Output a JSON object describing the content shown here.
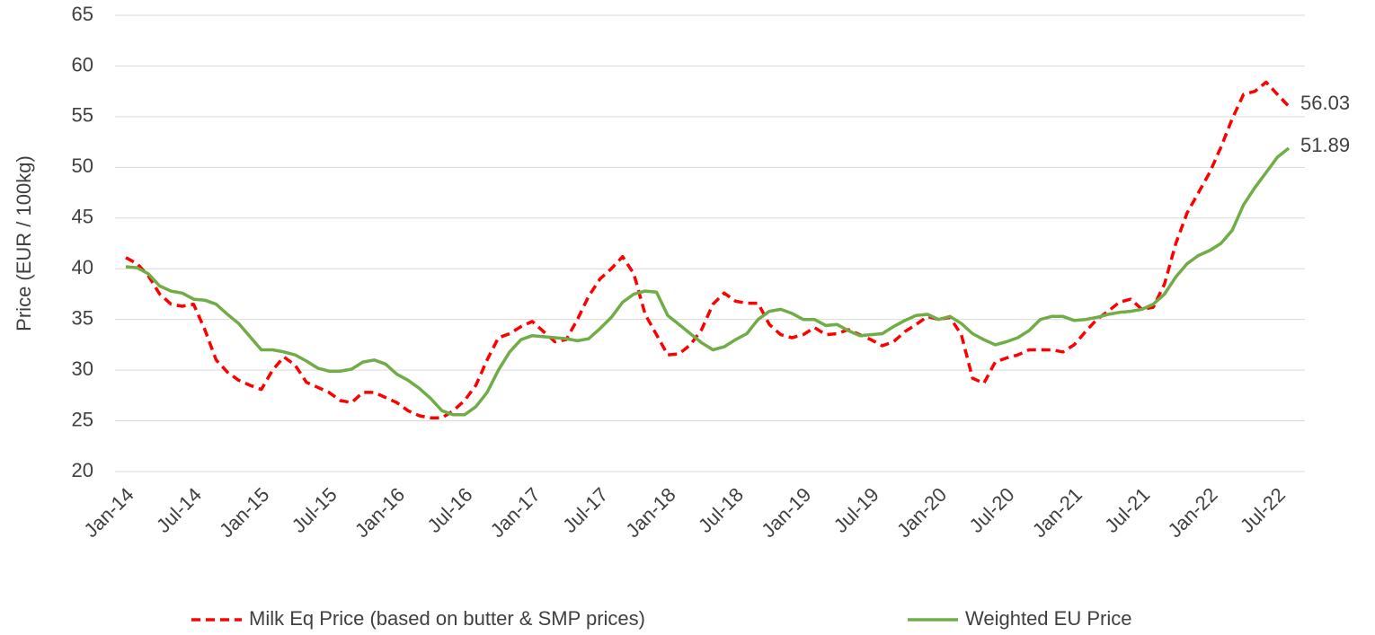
{
  "chart_data": {
    "type": "line",
    "y_label": "Price (EUR / 100kg)",
    "categories": [
      "Jan-14",
      null,
      null,
      null,
      null,
      null,
      "Jul-14",
      null,
      null,
      null,
      null,
      null,
      "Jan-15",
      null,
      null,
      null,
      null,
      null,
      "Jul-15",
      null,
      null,
      null,
      null,
      null,
      "Jan-16",
      null,
      null,
      null,
      null,
      null,
      "Jul-16",
      null,
      null,
      null,
      null,
      null,
      "Jan-17",
      null,
      null,
      null,
      null,
      null,
      "Jul-17",
      null,
      null,
      null,
      null,
      null,
      "Jan-18",
      null,
      null,
      null,
      null,
      null,
      "Jul-18",
      null,
      null,
      null,
      null,
      null,
      "Jan-19",
      null,
      null,
      null,
      null,
      null,
      "Jul-19",
      null,
      null,
      null,
      null,
      null,
      "Jan-20",
      null,
      null,
      null,
      null,
      null,
      "Jul-20",
      null,
      null,
      null,
      null,
      null,
      "Jan-21",
      null,
      null,
      null,
      null,
      null,
      "Jul-21",
      null,
      null,
      null,
      null,
      null,
      "Jan-22",
      null,
      null,
      null,
      null,
      null,
      "Jul-22",
      null
    ],
    "series": [
      {
        "name": "Milk Eq Price (based on butter & SMP prices)",
        "color": "#ff0000",
        "dash": true,
        "values": [
          41.1,
          40.5,
          39.3,
          37.5,
          36.5,
          36.3,
          36.5,
          34,
          31,
          29.8,
          29,
          28.5,
          28.1,
          30,
          31.3,
          30.5,
          28.8,
          28.3,
          27.8,
          27,
          26.8,
          27.8,
          27.8,
          27.3,
          26.8,
          26,
          25.5,
          25.3,
          25.3,
          26,
          27,
          28.5,
          31,
          33.2,
          33.6,
          34.3,
          34.8,
          33.8,
          32.8,
          33,
          35,
          37.3,
          39,
          40,
          41.2,
          39.5,
          35.5,
          33.5,
          31.5,
          31.6,
          32.5,
          34,
          36.5,
          37.6,
          36.8,
          36.6,
          36.6,
          34.5,
          33.5,
          33.2,
          33.5,
          34.2,
          33.5,
          33.6,
          34,
          33.5,
          33,
          32.4,
          32.8,
          33.8,
          34.5,
          35.3,
          35,
          35.2,
          33.5,
          29.2,
          28.7,
          30.8,
          31.2,
          31.5,
          32,
          32,
          32,
          31.8,
          32.5,
          33.8,
          35,
          35.8,
          36.7,
          37,
          36,
          36.2,
          38.5,
          42.5,
          45.5,
          47.5,
          49.5,
          52,
          54.8,
          57.2,
          57.5,
          58.4,
          57.2,
          56.03
        ]
      },
      {
        "name": "Weighted EU Price",
        "color": "#70ad47",
        "dash": false,
        "values": [
          40.2,
          40.1,
          39.5,
          38.3,
          37.8,
          37.6,
          37,
          36.9,
          36.5,
          35.5,
          34.6,
          33.3,
          32,
          32,
          31.8,
          31.5,
          30.9,
          30.2,
          29.9,
          29.9,
          30.1,
          30.8,
          31,
          30.6,
          29.6,
          29,
          28.2,
          27.2,
          26,
          25.6,
          25.6,
          26.4,
          27.8,
          30,
          31.8,
          33,
          33.4,
          33.3,
          33.2,
          33.1,
          32.9,
          33.1,
          34.1,
          35.2,
          36.7,
          37.5,
          37.8,
          37.7,
          35.4,
          34.5,
          33.6,
          32.7,
          32,
          32.3,
          33,
          33.6,
          35,
          35.8,
          36,
          35.6,
          35,
          35,
          34.4,
          34.5,
          33.9,
          33.4,
          33.5,
          33.6,
          34.3,
          34.9,
          35.4,
          35.5,
          35,
          35.3,
          34.6,
          33.6,
          33,
          32.5,
          32.8,
          33.2,
          33.9,
          35,
          35.3,
          35.3,
          34.9,
          35,
          35.2,
          35.5,
          35.7,
          35.8,
          36,
          36.5,
          37.5,
          39.2,
          40.5,
          41.3,
          41.8,
          42.5,
          43.8,
          46.3,
          48,
          49.5,
          51,
          51.89
        ]
      }
    ],
    "ylim": [
      20,
      65
    ],
    "yticks": [
      20,
      25,
      30,
      35,
      40,
      45,
      50,
      55,
      60,
      65
    ],
    "grid": true,
    "legend": "bottom"
  }
}
